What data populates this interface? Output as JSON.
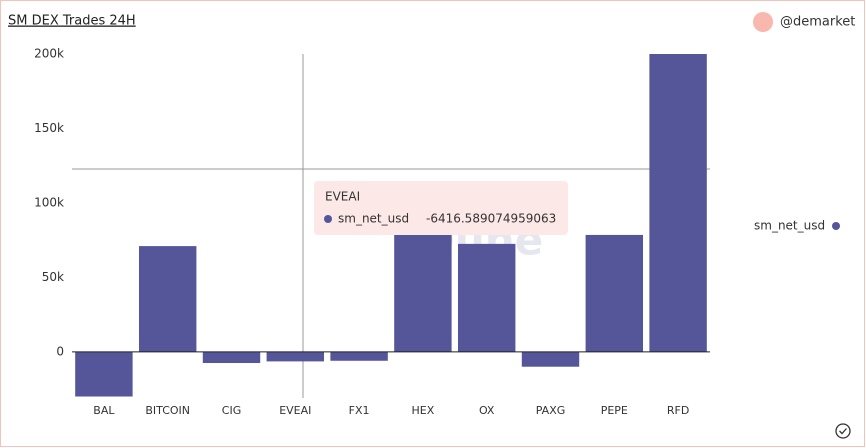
{
  "chart_data": {
    "type": "bar",
    "title": "SM DEX Trades 24H",
    "author": "@demarket",
    "watermark": "Dune",
    "categories": [
      "BAL",
      "BITCOIN",
      "CIG",
      "EVEAI",
      "FX1",
      "HEX",
      "OX",
      "PAXG",
      "PEPE",
      "RFD"
    ],
    "series": [
      {
        "name": "sm_net_usd",
        "color": "#55559a",
        "values": [
          -30000,
          71000,
          -7500,
          -6416.589074959063,
          -6000,
          80000,
          72500,
          -10000,
          78500,
          200000
        ]
      }
    ],
    "ylim": [
      -31000,
      200000
    ],
    "yticks": [
      {
        "value": 0,
        "label": "0"
      },
      {
        "value": 50000,
        "label": "50k"
      },
      {
        "value": 100000,
        "label": "100k"
      },
      {
        "value": 150000,
        "label": "150k"
      },
      {
        "value": 200000,
        "label": "200k"
      }
    ],
    "tooltip_index": 3
  }
}
